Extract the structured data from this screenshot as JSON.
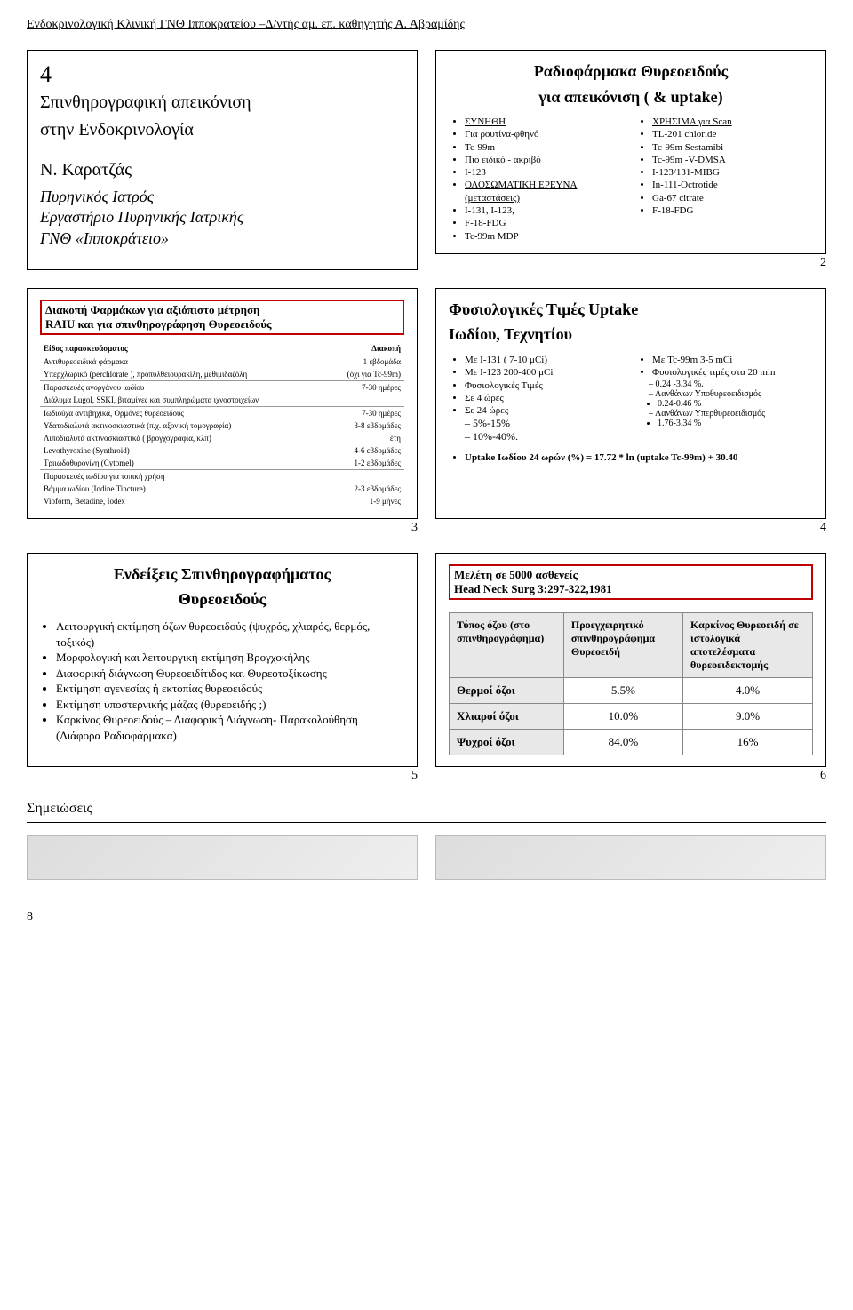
{
  "header": "Ενδοκρινολογική Κλινική ΓΝΘ Ιπποκρατείου –Δ/ντής αμ. επ. καθηγητής Α. Αβραμίδης",
  "slide1": {
    "num": "4",
    "line1": "Σπινθηρογραφική απεικόνιση",
    "line2": "στην Ενδοκρινολογία",
    "author": "Ν. Καρατζάς",
    "role1": "Πυρηνικός Ιατρός",
    "role2": "Εργαστήριο Πυρηνικής Ιατρικής",
    "role3": "ΓΝΘ «Ιπποκράτειο»"
  },
  "slide2": {
    "title_l1": "Ραδιοφάρμακα Θυρεοειδούς",
    "title_l2": "για απεικόνιση ( & uptake)",
    "left": [
      "ΣΥΝΗΘΗ",
      "Για ρουτίνα-φθηνό",
      "Tc-99m",
      "Πιο ειδικό - ακριβό",
      "I-123",
      "ΟΛΟΣΩΜΑΤΙΚΗ ΕΡΕΥΝΑ (μεταστάσεις)",
      "I-131, I-123,",
      "F-18-FDG",
      "Tc-99m MDP"
    ],
    "right": [
      "ΧΡΗΣΙΜΑ για Scan",
      "TL-201 chloride",
      "Tc-99m Sestamibi",
      "Tc-99m -V-DMSA",
      "I-123/131-MIBG",
      "In-111-Octrotide",
      "Ga-67 citrate",
      "F-18-FDG"
    ],
    "num": "2"
  },
  "slide3": {
    "box_l1": "Διακοπή Φαρμάκων για αξιόπιστο μέτρηση",
    "box_l2": "RAIU και για σπινθηρογράφηση Θυρεοειδούς",
    "hdr_left": "Είδος παρασκευάσματος",
    "hdr_right": "Διακοπή",
    "rows": [
      [
        "Αντιθυρεοειδικά φάρμακα",
        "1 εβδομάδα"
      ],
      [
        "Υπερχλωρικό (perchlorate ), προπυλθειουρακίλη, μεθιμιδαζόλη",
        "(όχι για Tc-99m)"
      ],
      [
        "Παρασκευές ανοργάνου ιωδίου",
        "7-30 ημέρες"
      ],
      [
        "Διάλυμα Lugol, SSKI, βιταμίνες και συμπληρώματα ιχνοστοιχείων",
        ""
      ],
      [
        "Ιωδιούχα αντιβηχικά, Ορμόνες θυρεοειδούς",
        "7-30 ημέρες"
      ],
      [
        "Υδατοδιαλυτά ακτινοσκιαστικά (π.χ. αξονική τομογραφία)",
        "3-8 εβδομάδες"
      ],
      [
        "Λιποδιαλυτά ακτινοσκιαστικά ( βρογχογραφία, κλπ)",
        "έτη"
      ],
      [
        "Levothyroxine (Synthroid)",
        "4-6 εβδομάδες"
      ],
      [
        "Τριιωδοθυρονίνη (Cytomel)",
        "1-2 εβδομάδες"
      ],
      [
        "Παρασκευές ιωδίου για τοπική χρήση",
        ""
      ],
      [
        "Βάμμα ιωδίου (Iodine Tincture)",
        "2-3 εβδομάδες"
      ],
      [
        "Vioform, Betadine, Iodex",
        "1-9 μήνες"
      ]
    ],
    "num": "3"
  },
  "slide4": {
    "title_l1": "Φυσιολογικές Τιμές Uptake",
    "title_l2": "Ιωδίου, Τεχνητίου",
    "left": [
      "Με Ι-131 ( 7-10 μCi)",
      "Με Ι-123 200-400 μCi",
      "Φυσιολογικές Τιμές",
      "Σε 4 ώρες"
    ],
    "left_sub1": "5%-15%",
    "left5": "Σε 24 ώρες",
    "left_sub2": "10%-40%.",
    "right_top": "Με Tc-99m 3-5 mCi",
    "right_sub": "Φυσιολογικές τιμές στα 20 min",
    "right_r1": "0.24 -3.34 %.",
    "right_r2": "Λανθάνων Υποθυρεοειδισμός",
    "right_r2v": "0.24-0.46 %",
    "right_r3": "Λανθάνων Υπερθυρεοειδισμός",
    "right_r3v": "1.76-3.34 %",
    "formula": "Uptake Ιωδίου 24 ωρών (%) = 17.72 * ln (uptake Tc-99m) + 30.40",
    "num": "4"
  },
  "slide5": {
    "title_l1": "Ενδείξεις Σπινθηρογραφήματος",
    "title_l2": "Θυρεοειδούς",
    "items": [
      "Λειτουργική εκτίμηση όζων θυρεοειδούς (ψυχρός, χλιαρός, θερμός, τοξικός)",
      "Μορφολογική και λειτουργική εκτίμηση Βρογχοκήλης",
      "Διαφορική διάγνωση Θυρεοειδίτιδος και Θυρεοτοξίκωσης",
      "Εκτίμηση αγενεσίας ή εκτοπίας θυρεοειδούς",
      "Εκτίμηση υποστερνικής μάζας (θυρεοειδής ;)",
      "Καρκίνος Θυρεοειδούς – Διαφορική Διάγνωση- Παρακολούθηση (Διάφορα Ραδιοφάρμακα)"
    ],
    "num": "5"
  },
  "slide6": {
    "title_l1": "Μελέτη σε 5000 ασθενείς",
    "title_l2": "Head Neck Surg 3:297-322,1981",
    "h1": "Τύπος όζου (στο σπινθηρογράφημα)",
    "h2": "Προεγχειρητικό σπινθηρογράφημα Θυρεοειδή",
    "h3": "Καρκίνος Θυρεοειδή σε ιστολογικά αποτελέσματα θυρεοειδεκτομής",
    "rows": [
      [
        "Θερμοί όζοι",
        "5.5%",
        "4.0%"
      ],
      [
        "Χλιαροί όζοι",
        "10.0%",
        "9.0%"
      ],
      [
        "Ψυχροί όζοι",
        "84.0%",
        "16%"
      ]
    ],
    "num": "6"
  },
  "notes_label": "Σημειώσεις",
  "page_num": "8",
  "colors": {
    "red_border": "#c00000",
    "table_header_bg": "#e8e8e8",
    "table_border": "#888888"
  }
}
